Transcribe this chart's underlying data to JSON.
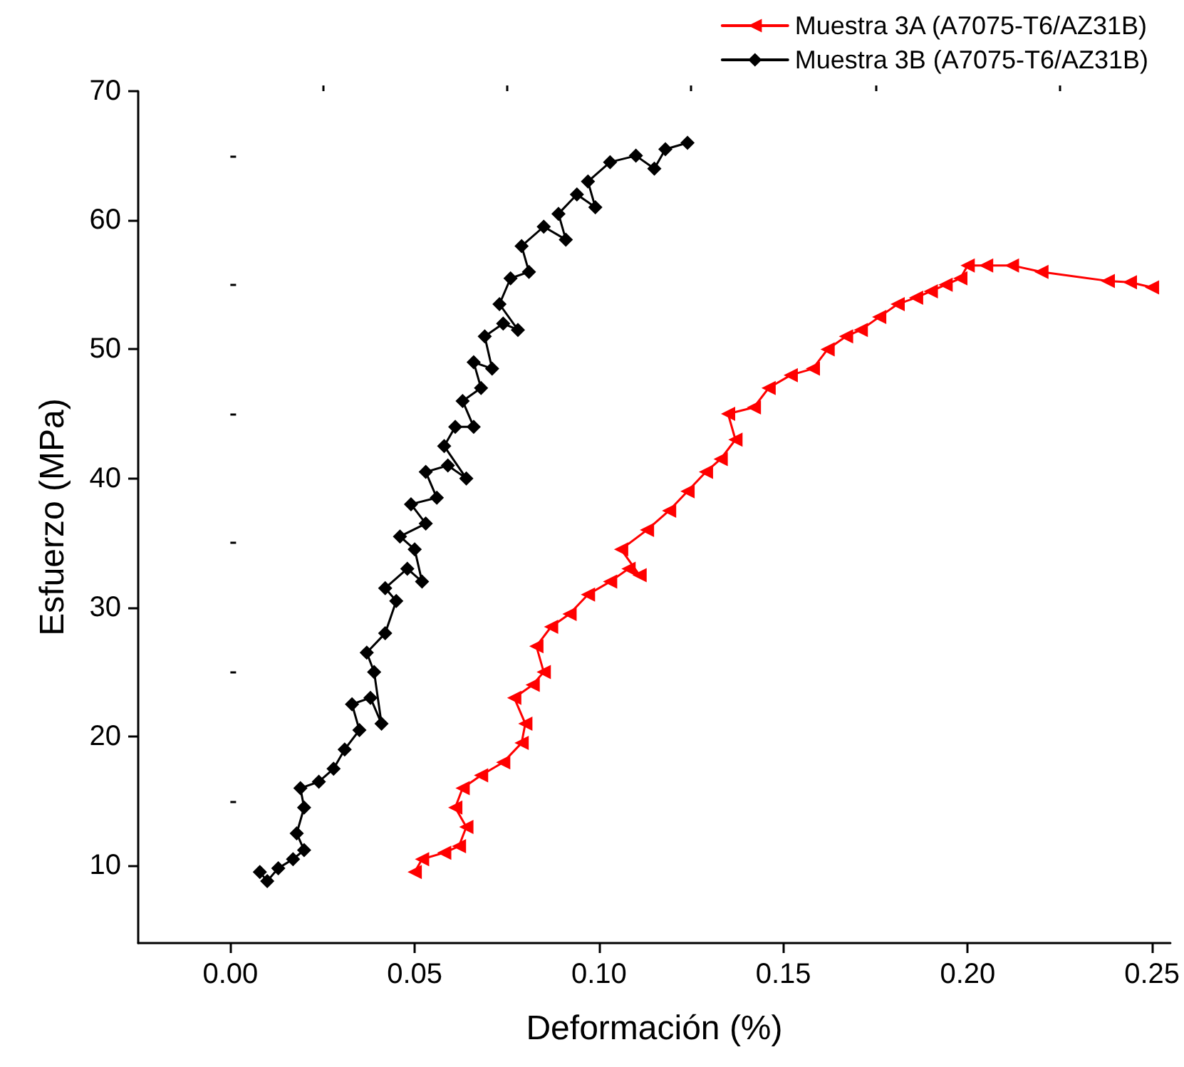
{
  "chart_data": {
    "type": "line",
    "xlabel": "Deformación (%)",
    "ylabel": "Esfuerzo (MPa)",
    "xlim": [
      -0.025,
      0.255
    ],
    "xticks": [
      {
        "value": 0,
        "label": "0.00"
      },
      {
        "value": 0.05,
        "label": "0.05"
      },
      {
        "value": 0.1,
        "label": "0.10"
      },
      {
        "value": 0.15,
        "label": "0.15"
      },
      {
        "value": 0.2,
        "label": "0.20"
      },
      {
        "value": 0.25,
        "label": "0.25"
      }
    ],
    "ylim": [
      4,
      70
    ],
    "yticks": [
      10,
      20,
      30,
      40,
      50,
      60,
      70
    ],
    "grid": false,
    "legend": "top right",
    "line_style": "solid",
    "series": [
      {
        "name": "Muestra 3A (A7075-T6/AZ31B)",
        "color": "#ff0000",
        "marker": "triangle",
        "x": [
          0.05,
          0.052,
          0.058,
          0.062,
          0.064,
          0.061,
          0.063,
          0.068,
          0.074,
          0.079,
          0.08,
          0.077,
          0.082,
          0.085,
          0.083,
          0.087,
          0.092,
          0.097,
          0.103,
          0.108,
          0.111,
          0.106,
          0.113,
          0.119,
          0.124,
          0.129,
          0.133,
          0.137,
          0.135,
          0.142,
          0.146,
          0.152,
          0.158,
          0.162,
          0.167,
          0.171,
          0.176,
          0.181,
          0.186,
          0.19,
          0.194,
          0.198,
          0.2,
          0.205,
          0.212,
          0.22,
          0.238,
          0.244,
          0.25
        ],
        "values": [
          9.5,
          10.5,
          11,
          11.5,
          13,
          14.5,
          16,
          17,
          18,
          19.5,
          21,
          23,
          24,
          25,
          27,
          28.5,
          29.5,
          31,
          32,
          33,
          32.5,
          34.5,
          36,
          37.5,
          39,
          40.5,
          41.5,
          43,
          45,
          45.5,
          47,
          48,
          48.5,
          50,
          51,
          51.5,
          52.5,
          53.5,
          54,
          54.5,
          55,
          55.5,
          56.5,
          56.5,
          56.5,
          56,
          55.3,
          55.2,
          54.8
        ]
      },
      {
        "name": "Muestra 3B (A7075-T6/AZ31B)",
        "color": "#000000",
        "marker": "diamond",
        "x": [
          0.008,
          0.01,
          0.013,
          0.017,
          0.02,
          0.018,
          0.02,
          0.019,
          0.024,
          0.028,
          0.031,
          0.035,
          0.033,
          0.038,
          0.041,
          0.039,
          0.037,
          0.042,
          0.045,
          0.042,
          0.048,
          0.052,
          0.05,
          0.046,
          0.053,
          0.049,
          0.056,
          0.053,
          0.059,
          0.064,
          0.058,
          0.061,
          0.066,
          0.063,
          0.068,
          0.066,
          0.071,
          0.069,
          0.074,
          0.078,
          0.073,
          0.076,
          0.081,
          0.079,
          0.085,
          0.091,
          0.089,
          0.094,
          0.099,
          0.097,
          0.103,
          0.11,
          0.115,
          0.118,
          0.124
        ],
        "values": [
          9.5,
          8.8,
          9.8,
          10.5,
          11.2,
          12.5,
          14.5,
          16,
          16.5,
          17.5,
          19,
          20.5,
          22.5,
          23,
          21,
          25,
          26.5,
          28,
          30.5,
          31.5,
          33,
          32,
          34.5,
          35.5,
          36.5,
          38,
          38.5,
          40.5,
          41,
          40,
          42.5,
          44,
          44,
          46,
          47,
          49,
          48.5,
          51,
          52,
          51.5,
          53.5,
          55.5,
          56,
          58,
          59.5,
          58.5,
          60.5,
          62,
          61,
          63,
          64.5,
          65,
          64,
          65.5,
          66
        ]
      }
    ]
  }
}
